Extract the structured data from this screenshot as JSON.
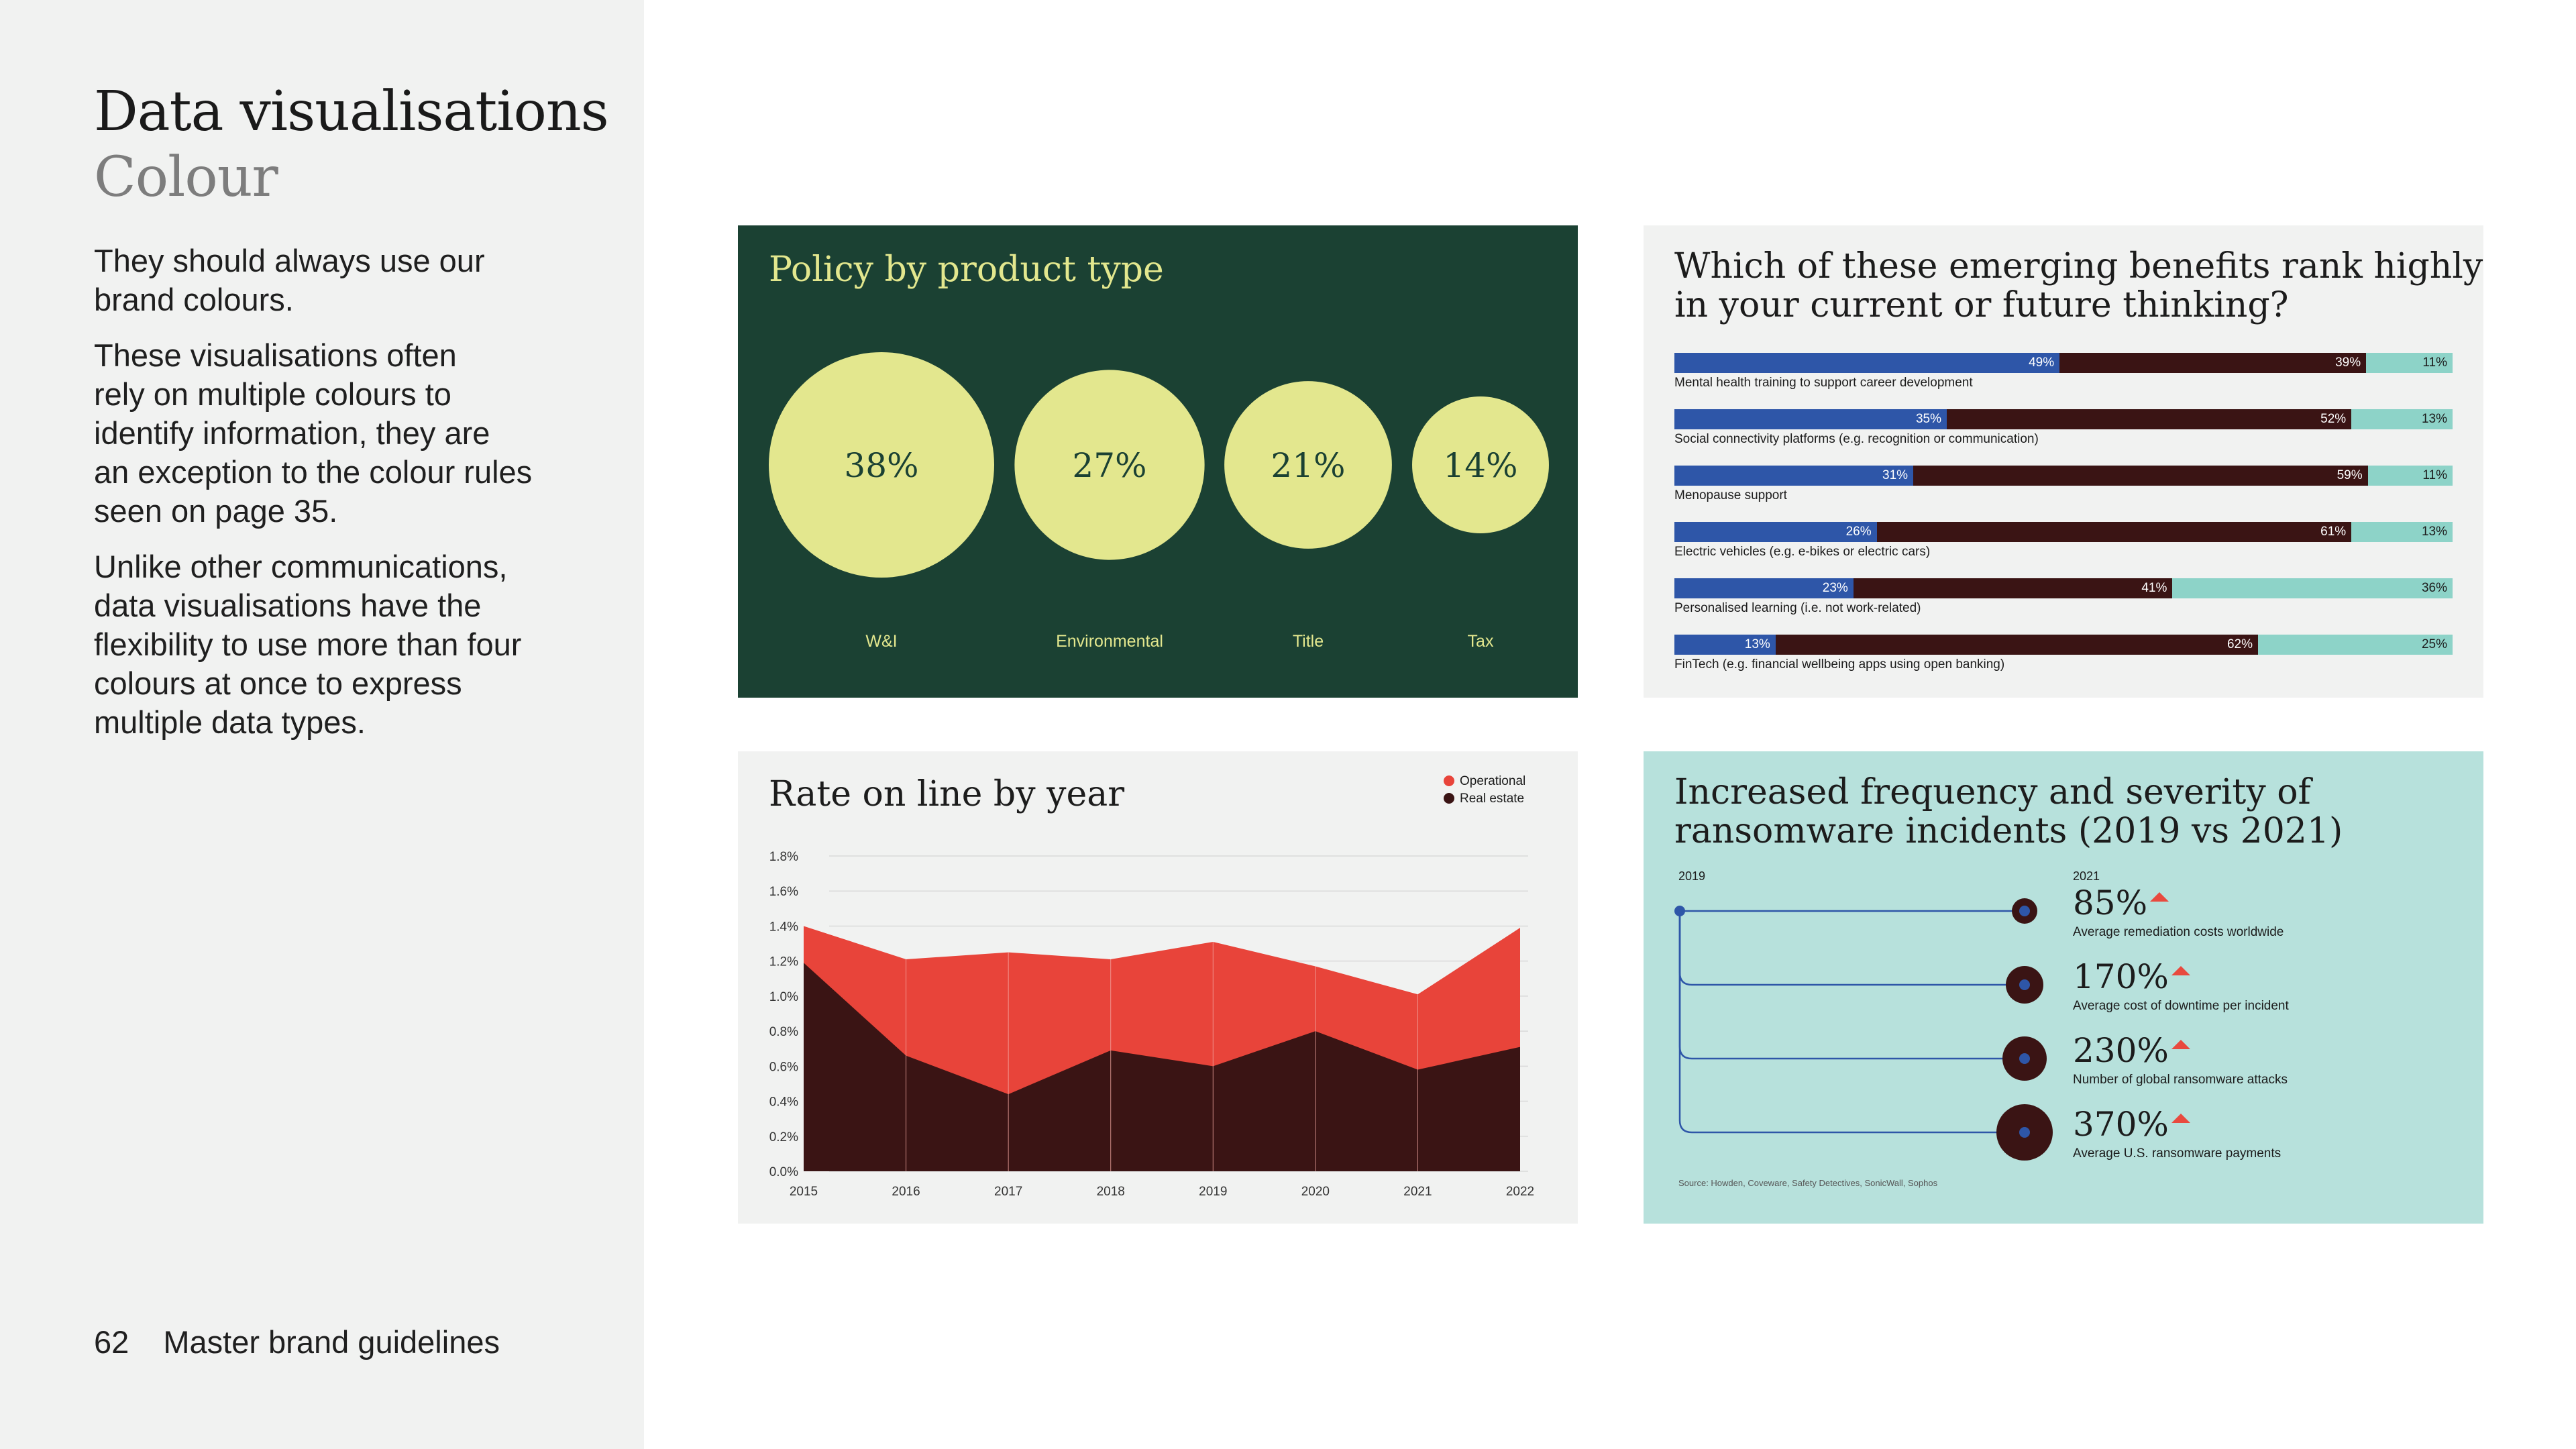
{
  "sidebar": {
    "title": "Data visualisations",
    "subtitle": "Colour",
    "paragraphs": [
      "They should always use our\nbrand colours.",
      "These visualisations often\nrely on multiple colours to\nidentify information, they are\nan exception to the colour rules\nseen on page 35.",
      "Unlike other communications,\ndata visualisations have the\nflexibility to use more than four\ncolours at once to express\nmultiple data types."
    ],
    "page_number": "62",
    "footer_label": "Master brand guidelines"
  },
  "colors": {
    "dark_green": "#1b4133",
    "pale_yellow": "#e3e78e",
    "blue": "#2e56a8",
    "maroon": "#3a1414",
    "teal": "#8dd3c8",
    "red": "#e8443a",
    "light_teal": "#b7e1dc"
  },
  "chart_data": [
    {
      "type": "bubble",
      "title": "Policy by product type",
      "categories": [
        "W&I",
        "Environmental",
        "Title",
        "Tax"
      ],
      "values": [
        38,
        27,
        21,
        14
      ],
      "labels": [
        "38%",
        "27%",
        "21%",
        "14%"
      ]
    },
    {
      "type": "bar",
      "stacked": true,
      "orientation": "horizontal",
      "title": "Which of these emerging benefits rank highly\nin your current or future thinking?",
      "categories": [
        "Mental health training to support career development",
        "Social connectivity platforms (e.g. recognition or communication)",
        "Menopause support",
        "Electric vehicles (e.g. e-bikes or electric cars)",
        "Personalised learning (i.e. not work-related)",
        "FinTech (e.g. financial wellbeing apps using open banking)"
      ],
      "series": [
        {
          "values": [
            49,
            35,
            31,
            26,
            23,
            13
          ],
          "color": "#2e56a8"
        },
        {
          "values": [
            39,
            52,
            59,
            61,
            41,
            62
          ],
          "color": "#3a1414"
        },
        {
          "values": [
            11,
            13,
            11,
            13,
            36,
            25
          ],
          "color": "#8dd3c8"
        }
      ],
      "xlim": [
        0,
        100
      ]
    },
    {
      "type": "area",
      "stacked": false,
      "title": "Rate on line by year",
      "x": [
        2015,
        2016,
        2017,
        2018,
        2019,
        2020,
        2021,
        2022
      ],
      "series": [
        {
          "name": "Operational",
          "values": [
            1.4,
            1.21,
            1.25,
            1.21,
            1.31,
            1.17,
            1.01,
            1.39
          ],
          "color": "#e8443a"
        },
        {
          "name": "Real estate",
          "values": [
            1.19,
            0.66,
            0.44,
            0.69,
            0.6,
            0.8,
            0.58,
            0.71
          ],
          "color": "#3a1414"
        }
      ],
      "ylim": [
        0,
        1.8
      ],
      "yticks": [
        "0.0%",
        "0.2%",
        "0.4%",
        "0.6%",
        "0.8%",
        "1.0%",
        "1.2%",
        "1.4%",
        "1.6%",
        "1.8%"
      ],
      "legend": "top-right",
      "grid": true
    }
  ],
  "ransomware": {
    "title": "Increased frequency and severity of\nransomware incidents (2019 vs 2021)",
    "year_start": "2019",
    "year_end": "2021",
    "stats": [
      {
        "value": "85%",
        "desc": "Average remediation costs worldwide",
        "number": 85
      },
      {
        "value": "170%",
        "desc": "Average cost of downtime per incident",
        "number": 170
      },
      {
        "value": "230%",
        "desc": "Number of global ransomware attacks",
        "number": 230
      },
      {
        "value": "370%",
        "desc": "Average U.S. ransomware payments",
        "number": 370
      }
    ],
    "source": "Source: Howden, Coveware, Safety Detectives, SonicWall, Sophos",
    "trend_icon": "arrow-up-icon"
  }
}
